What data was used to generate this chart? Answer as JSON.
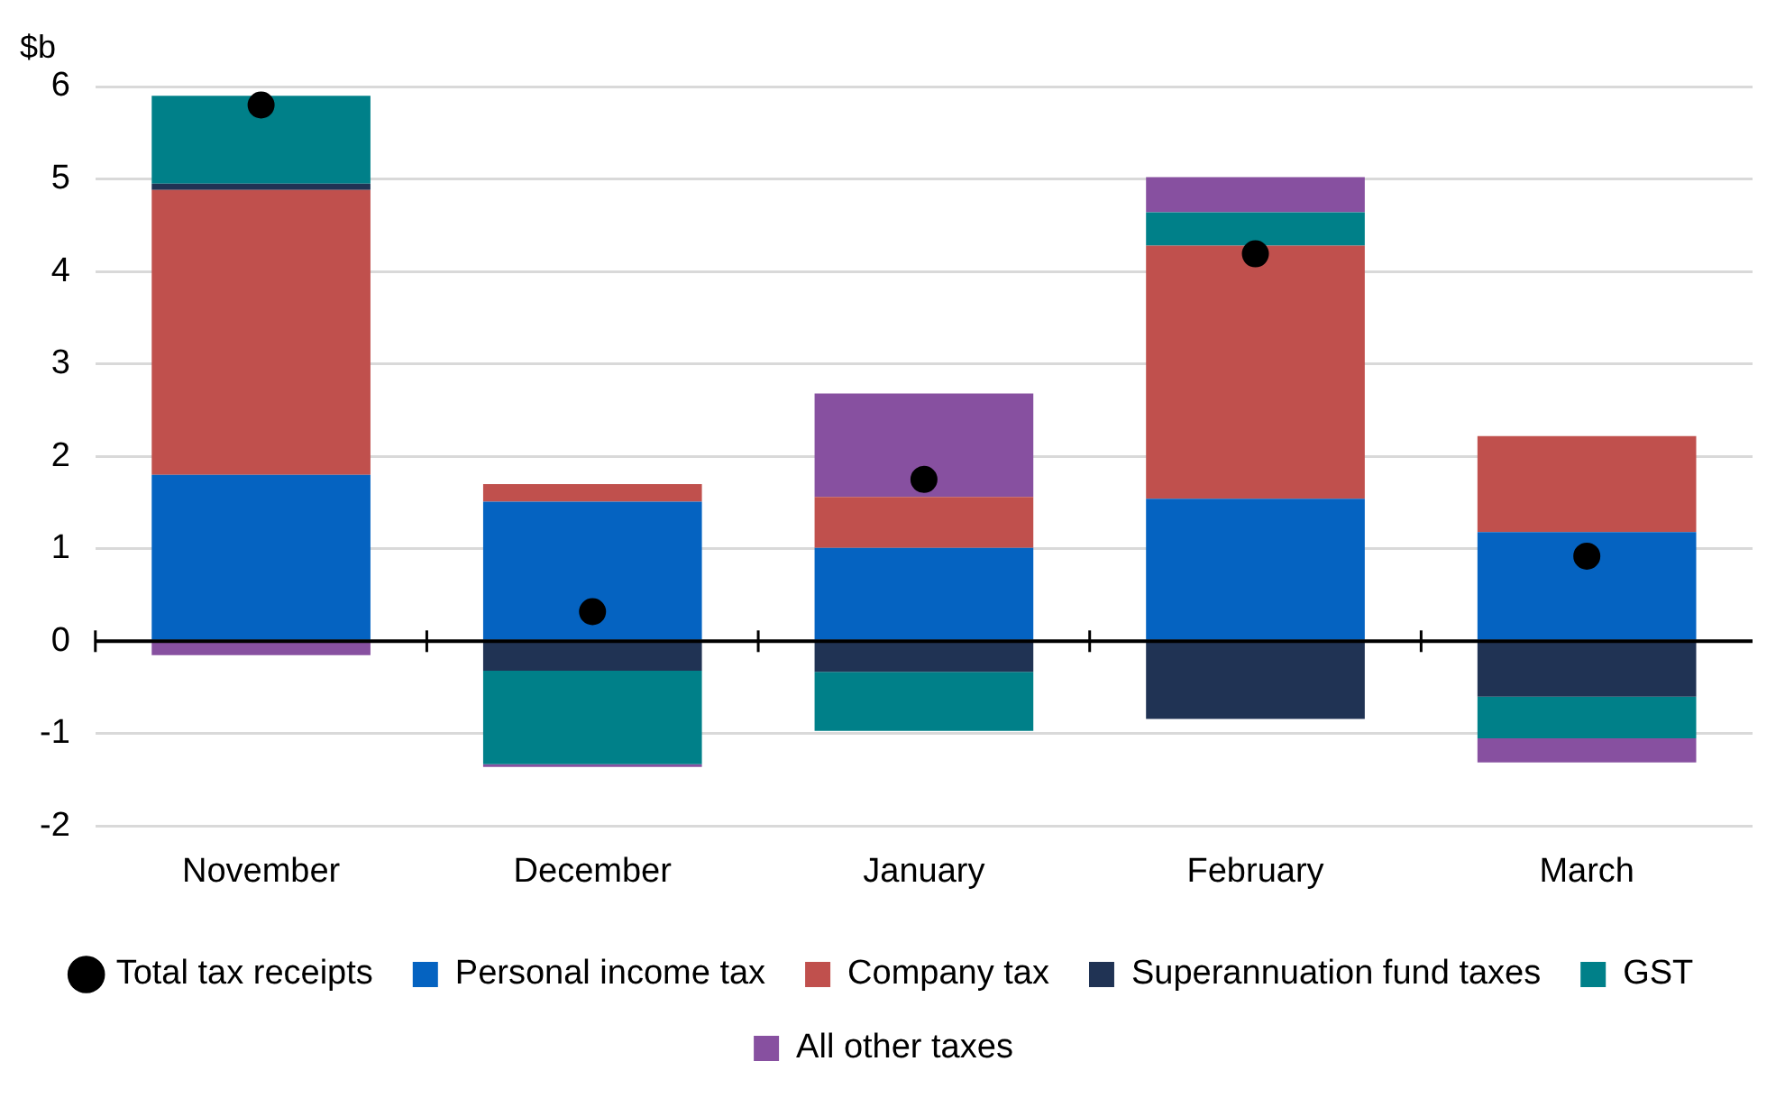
{
  "chart_data": {
    "type": "bar",
    "stacked": true,
    "ylabel": "$b",
    "categories": [
      "November",
      "December",
      "January",
      "February",
      "March"
    ],
    "series": [
      {
        "name": "Personal income tax",
        "color": "#0563c1",
        "values": [
          1.8,
          1.51,
          1.01,
          1.54,
          1.18
        ]
      },
      {
        "name": "Company tax",
        "color": "#c0504d",
        "values": [
          3.08,
          0.19,
          0.55,
          2.74,
          1.04
        ]
      },
      {
        "name": "Superannuation fund taxes",
        "color": "#203354",
        "values": [
          0.07,
          -0.32,
          -0.33,
          -0.84,
          -0.6
        ]
      },
      {
        "name": "GST",
        "color": "#008089",
        "values": [
          0.95,
          -1.01,
          -0.64,
          0.36,
          -0.45
        ]
      },
      {
        "name": "All other taxes",
        "color": "#8750a0",
        "values": [
          -0.15,
          -0.03,
          1.12,
          0.38,
          -0.26
        ]
      },
      {
        "name": "Total tax receipts",
        "type": "scatter",
        "color": "#000000",
        "x": [
          "November",
          "December",
          "January",
          "February",
          "March"
        ],
        "values": [
          5.8,
          0.32,
          1.75,
          4.19,
          0.92
        ]
      }
    ],
    "ylim": [
      -2,
      6
    ],
    "yticks": [
      -2,
      -1,
      0,
      1,
      2,
      3,
      4,
      5,
      6
    ],
    "grid": "y",
    "legend": "bottom"
  }
}
